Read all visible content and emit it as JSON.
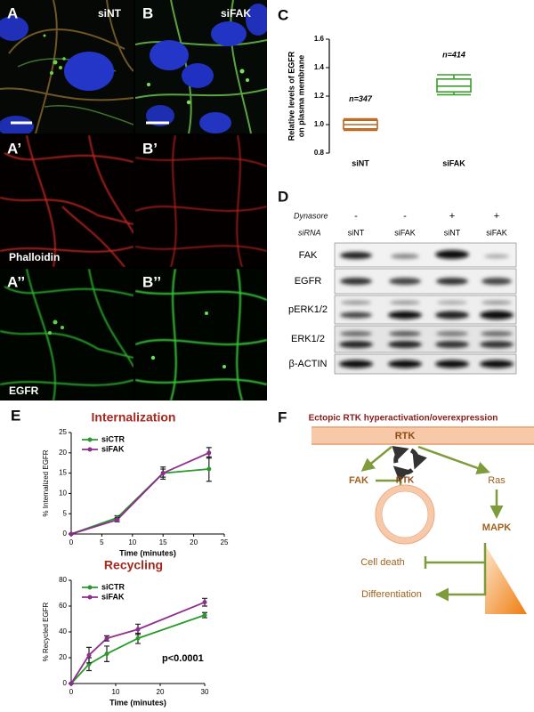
{
  "microscopy": {
    "a_label": "A",
    "b_label": "B",
    "a_prime": "A’",
    "b_prime": "B’",
    "a_dprime": "A’’",
    "b_dprime": "B’’",
    "col1": "siNT",
    "col2": "siFAK",
    "row2": "Phalloidin",
    "row3": "EGFR"
  },
  "blot": {
    "label": "D",
    "treatment": "Dynasore",
    "treatment_marks": [
      "-",
      "-",
      "+",
      "+"
    ],
    "sirna_label": "siRNA",
    "sirna": [
      "siNT",
      "siFAK",
      "siNT",
      "siFAK"
    ],
    "rows": [
      "FAK",
      "EGFR",
      "pERK1/2",
      "ERK1/2",
      "β-ACTIN"
    ]
  },
  "diagram": {
    "label": "F",
    "title": "Ectopic RTK hyperactivation/overexpression",
    "membrane_rtk": "RTK",
    "fak": "FAK",
    "vesicle_rtk": "RTK",
    "ras": "Ras",
    "mapk": "MAPK",
    "cell_death": "Cell death",
    "differentiation": "Differentiation"
  },
  "chart_data": [
    {
      "type": "box",
      "panel": "C",
      "ylabel": [
        "Relative levels of EGFR",
        "on plasma membrane"
      ],
      "categories": [
        "siNT",
        "siFAK"
      ],
      "colors": [
        "#b8661c",
        "#3a9e2a"
      ],
      "stats": [
        {
          "min": 0.96,
          "q1": 0.97,
          "median": 1.0,
          "q3": 1.03,
          "max": 1.04
        },
        {
          "min": 1.21,
          "q1": 1.23,
          "median": 1.27,
          "q3": 1.32,
          "max": 1.35
        }
      ],
      "annotations": [
        "n=347",
        "n=414"
      ],
      "ylim": [
        0.8,
        1.6
      ],
      "yticks": [
        0.8,
        {
          "value": 1,
          "label": "1.0"
        },
        1.2,
        1.4,
        1.6
      ]
    },
    {
      "type": "line",
      "panel": "E",
      "title": "Internalization",
      "xlabel": "Time (minutes)",
      "ylabel": "% Internalized EGFR",
      "x": [
        0,
        7.5,
        15,
        22.5
      ],
      "xlim": [
        0,
        25
      ],
      "ylim": [
        0,
        25
      ],
      "xticks": [
        0,
        5,
        10,
        15,
        20,
        25
      ],
      "yticks": [
        0,
        5,
        10,
        15,
        20,
        25
      ],
      "legend": "upper left",
      "series": [
        {
          "name": "siCTR",
          "color": "#2a9a2a",
          "values": [
            0,
            4,
            15,
            16
          ],
          "errors": [
            0,
            0.5,
            1.5,
            3
          ]
        },
        {
          "name": "siFAK",
          "color": "#8e2d8e",
          "values": [
            0,
            3.5,
            15,
            20
          ],
          "errors": [
            0,
            0.5,
            1,
            1.3
          ]
        }
      ]
    },
    {
      "type": "line",
      "title": "Recycling",
      "xlabel": "Time (minutes)",
      "ylabel": "% Recycled EGFR",
      "annotation": "p<0.0001",
      "x": [
        0,
        4,
        8,
        15,
        30
      ],
      "xlim": [
        0,
        30
      ],
      "ylim": [
        0,
        80
      ],
      "xticks": [
        0,
        10,
        20,
        30
      ],
      "yticks": [
        0,
        20,
        40,
        60,
        80
      ],
      "legend": "upper left",
      "series": [
        {
          "name": "siCTR",
          "color": "#2a9a2a",
          "values": [
            0,
            15,
            23,
            35,
            53
          ],
          "errors": [
            0,
            5,
            6,
            4,
            2
          ]
        },
        {
          "name": "siFAK",
          "color": "#8e2d8e",
          "values": [
            0,
            22,
            35,
            42,
            63
          ],
          "errors": [
            0,
            6,
            2,
            4,
            3
          ]
        }
      ]
    }
  ]
}
